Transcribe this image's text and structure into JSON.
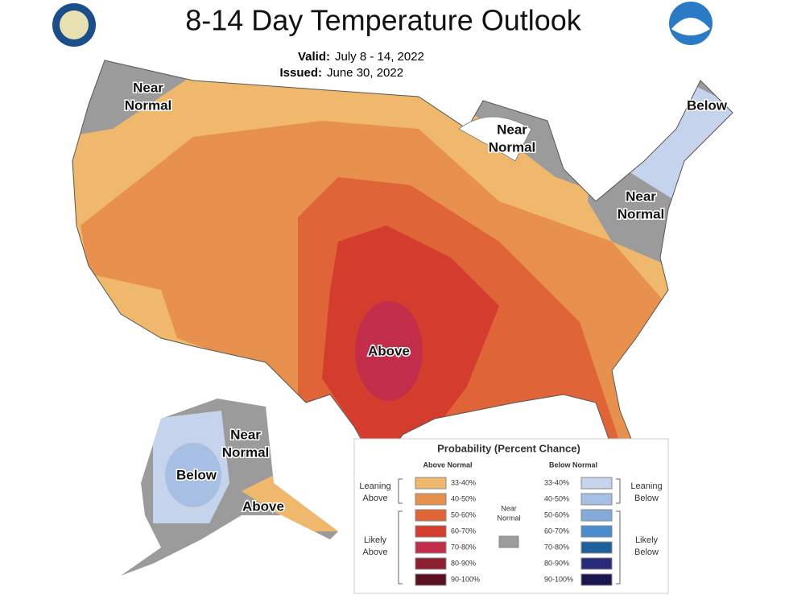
{
  "header": {
    "title": "8-14 Day Temperature Outlook",
    "valid_label": "Valid:",
    "valid_dates": "July 8 - 14, 2022",
    "issued_label": "Issued:",
    "issued_date": "June 30, 2022"
  },
  "regions": [
    {
      "lines": [
        "Near",
        "Normal"
      ]
    },
    {
      "lines": [
        "Near",
        "Normal"
      ]
    },
    {
      "lines": [
        "Below"
      ]
    },
    {
      "lines": [
        "Near",
        "Normal"
      ]
    },
    {
      "lines": [
        "Above"
      ]
    },
    {
      "lines": [
        "Below"
      ]
    },
    {
      "lines": [
        "Near",
        "Normal"
      ]
    },
    {
      "lines": [
        "Above"
      ]
    }
  ],
  "legend": {
    "title": "Probability (Percent Chance)",
    "above_heading": "Above Normal",
    "below_heading": "Below Normal",
    "near_normal": [
      "Near",
      "Normal"
    ],
    "near_color": "#9b9b9b",
    "leaning_above": [
      "Leaning",
      "Above"
    ],
    "likely_above": [
      "Likely",
      "Above"
    ],
    "leaning_below": [
      "Leaning",
      "Below"
    ],
    "likely_below": [
      "Likely",
      "Below"
    ],
    "above": [
      {
        "range": "33-40%",
        "color": "#f0b86c"
      },
      {
        "range": "40-50%",
        "color": "#e8914e"
      },
      {
        "range": "50-60%",
        "color": "#df6437"
      },
      {
        "range": "60-70%",
        "color": "#d43c2d"
      },
      {
        "range": "70-80%",
        "color": "#c22e4a"
      },
      {
        "range": "80-90%",
        "color": "#8c2030"
      },
      {
        "range": "90-100%",
        "color": "#5a1020"
      }
    ],
    "below": [
      {
        "range": "33-40%",
        "color": "#c6d3ec"
      },
      {
        "range": "40-50%",
        "color": "#a6bfe2"
      },
      {
        "range": "50-60%",
        "color": "#84abd9"
      },
      {
        "range": "60-70%",
        "color": "#4a8ccc"
      },
      {
        "range": "70-80%",
        "color": "#1f5f9c"
      },
      {
        "range": "80-90%",
        "color": "#2a2a7a"
      },
      {
        "range": "90-100%",
        "color": "#1c1650"
      }
    ]
  }
}
